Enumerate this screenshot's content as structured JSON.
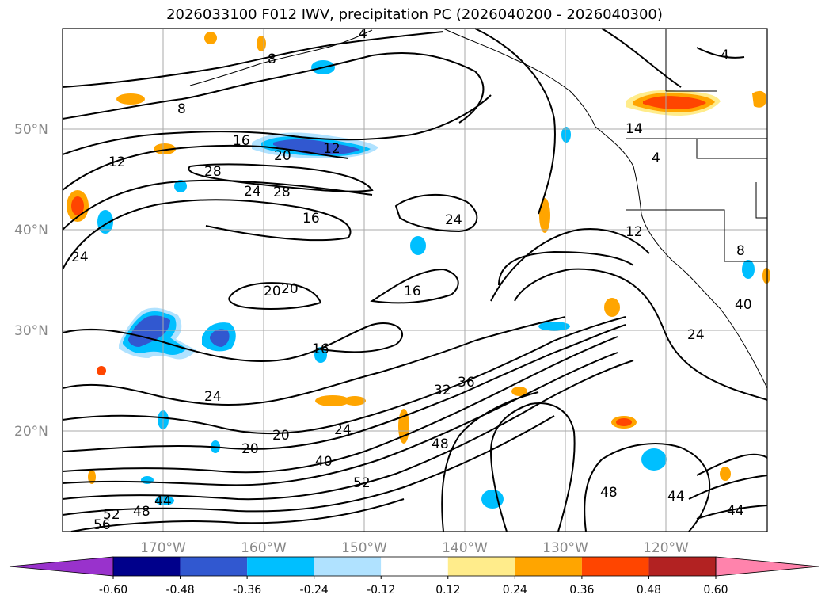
{
  "title": "2026033100 F012 IWV, precipitation PC (2026040200 - 2026040300)",
  "lat_labels": [
    "50°N",
    "40°N",
    "30°N",
    "20°N"
  ],
  "lon_labels": [
    "170°W",
    "160°W",
    "150°W",
    "140°W",
    "130°W",
    "120°W"
  ],
  "colorbar": {
    "levels": [
      "-0.60",
      "-0.48",
      "-0.36",
      "-0.24",
      "-0.12",
      "0.12",
      "0.24",
      "0.36",
      "0.48",
      "0.60"
    ],
    "colors": [
      "#9932cc",
      "#00008b",
      "#3158d0",
      "#00bfff",
      "#b0e2ff",
      "#ffffff",
      "#ffec8b",
      "#ffa500",
      "#ff4500",
      "#b22222",
      "#ff83ac"
    ]
  },
  "contour_labels": [
    "4",
    "8",
    "8",
    "12",
    "12",
    "12",
    "16",
    "16",
    "16",
    "16",
    "20",
    "20",
    "20",
    "20",
    "24",
    "24",
    "24",
    "24",
    "24",
    "24",
    "28",
    "28",
    "32",
    "36",
    "40",
    "40",
    "44",
    "44",
    "44",
    "48",
    "48",
    "48",
    "52",
    "52",
    "56",
    "20",
    "4",
    "4",
    "14",
    "8"
  ],
  "colors": {
    "contour": "#000000",
    "grid": "#aaaaaa",
    "frame": "#000000"
  }
}
